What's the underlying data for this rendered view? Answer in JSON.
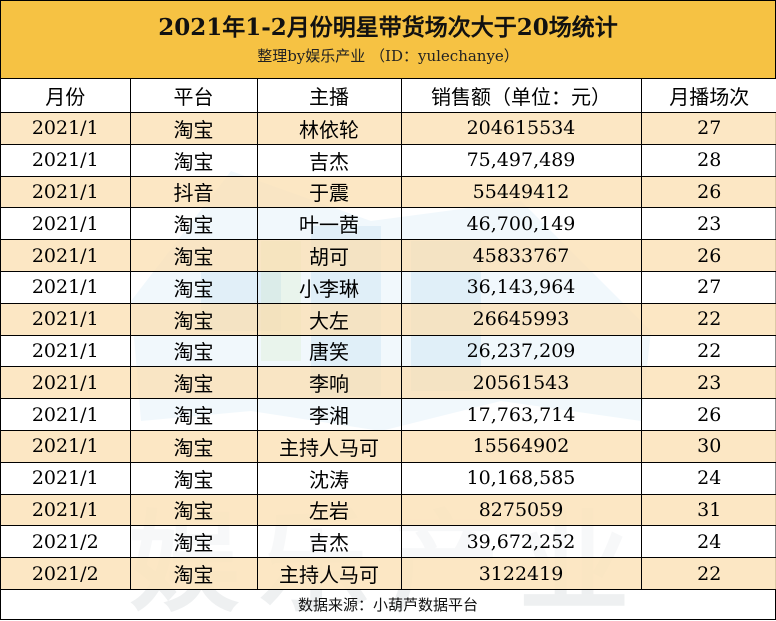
{
  "title": "2021年1-2月份明星带货场次大于20场统计",
  "subtitle": "整理by娱乐产业 （ID：yulechanye）",
  "columns": [
    "月份",
    "平台",
    "主播",
    "销售额（单位：元）",
    "月播场次"
  ],
  "rows": [
    {
      "month": "2021/1",
      "platform": "淘宝",
      "host": "林依轮",
      "sales": "204615534",
      "sessions": "27"
    },
    {
      "month": "2021/1",
      "platform": "淘宝",
      "host": "吉杰",
      "sales": "75,497,489",
      "sessions": "28"
    },
    {
      "month": "2021/1",
      "platform": "抖音",
      "host": "于震",
      "sales": "55449412",
      "sessions": "26"
    },
    {
      "month": "2021/1",
      "platform": "淘宝",
      "host": "叶一茜",
      "sales": "46,700,149",
      "sessions": "23"
    },
    {
      "month": "2021/1",
      "platform": "淘宝",
      "host": "胡可",
      "sales": "45833767",
      "sessions": "26"
    },
    {
      "month": "2021/1",
      "platform": "淘宝",
      "host": "小李琳",
      "sales": "36,143,964",
      "sessions": "27"
    },
    {
      "month": "2021/1",
      "platform": "淘宝",
      "host": "大左",
      "sales": "26645993",
      "sessions": "22"
    },
    {
      "month": "2021/1",
      "platform": "淘宝",
      "host": "唐笑",
      "sales": "26,237,209",
      "sessions": "22"
    },
    {
      "month": "2021/1",
      "platform": "淘宝",
      "host": "李响",
      "sales": "20561543",
      "sessions": "23"
    },
    {
      "month": "2021/1",
      "platform": "淘宝",
      "host": "李湘",
      "sales": "17,763,714",
      "sessions": "26"
    },
    {
      "month": "2021/1",
      "platform": "淘宝",
      "host": "主持人马可",
      "sales": "15564902",
      "sessions": "30"
    },
    {
      "month": "2021/1",
      "platform": "淘宝",
      "host": "沈涛",
      "sales": "10,168,585",
      "sessions": "24"
    },
    {
      "month": "2021/1",
      "platform": "淘宝",
      "host": "左岩",
      "sales": "8275059",
      "sessions": "31"
    },
    {
      "month": "2021/2",
      "platform": "淘宝",
      "host": "吉杰",
      "sales": "39,672,252",
      "sessions": "24"
    },
    {
      "month": "2021/2",
      "platform": "淘宝",
      "host": "主持人马可",
      "sales": "3122419",
      "sessions": "22"
    }
  ],
  "footer": "数据来源：小葫芦数据平台",
  "watermark_text": "娱乐产业",
  "colors": {
    "header_bg": "#f6c243",
    "odd_row_bg": "#fce4bc",
    "even_row_bg": "#ffffff",
    "border": "#000000"
  }
}
